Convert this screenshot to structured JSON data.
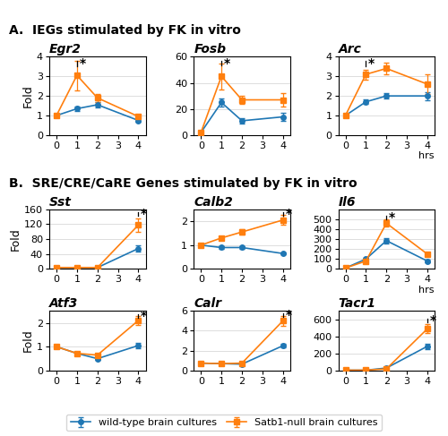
{
  "chart_data": [
    {
      "type": "line",
      "title": "Egr2",
      "subtitle": "A.  IEGs stimulated by FK in vitro",
      "ylabel": "Fold",
      "x": [
        0,
        1,
        2,
        4
      ],
      "xlim": [
        -0.35,
        4.35
      ],
      "xticks": [
        0,
        1,
        2,
        3,
        4
      ],
      "ylim": [
        0,
        4
      ],
      "yticks": [
        0,
        1,
        2,
        3,
        4
      ],
      "grid": "y",
      "legend": "lower center",
      "series": [
        {
          "name": "wild-type brain cultures",
          "marker": "o",
          "values": [
            1.0,
            1.35,
            1.55,
            0.75
          ],
          "errors": [
            0.06,
            0.12,
            0.12,
            0.08
          ]
        },
        {
          "name": "Satb1-null brain cultures",
          "marker": "s",
          "values": [
            1.0,
            3.05,
            1.9,
            0.95
          ],
          "errors": [
            0.08,
            0.75,
            0.2,
            0.12
          ]
        }
      ],
      "annotations": [
        {
          "text": "*",
          "x": 1,
          "y": 3.65
        }
      ]
    },
    {
      "type": "line",
      "title": "Fosb",
      "x": [
        0,
        1,
        2,
        4
      ],
      "xlim": [
        -0.35,
        4.35
      ],
      "xticks": [
        0,
        1,
        2,
        3,
        4
      ],
      "ylim": [
        0,
        60
      ],
      "yticks": [
        0,
        20,
        40,
        60
      ],
      "grid": "y",
      "series": [
        {
          "name": "wild-type brain cultures",
          "marker": "o",
          "values": [
            2.0,
            25.0,
            11.0,
            14.0
          ],
          "errors": [
            0.5,
            3.0,
            2.0,
            3.0
          ]
        },
        {
          "name": "Satb1-null brain cultures",
          "marker": "s",
          "values": [
            2.0,
            45.0,
            27.0,
            27.0
          ],
          "errors": [
            0.5,
            10.0,
            3.0,
            5.0
          ]
        }
      ],
      "annotations": [
        {
          "text": "*",
          "x": 1,
          "y": 55
        }
      ]
    },
    {
      "type": "line",
      "title": "Arc",
      "xlabel": "hrs",
      "x": [
        0,
        1,
        2,
        4
      ],
      "xlim": [
        -0.35,
        4.35
      ],
      "xticks": [
        0,
        1,
        2,
        3,
        4
      ],
      "ylim": [
        0,
        4
      ],
      "yticks": [
        0,
        1,
        2,
        3,
        4
      ],
      "grid": "y",
      "series": [
        {
          "name": "wild-type brain cultures",
          "marker": "o",
          "values": [
            1.0,
            1.7,
            2.0,
            2.0
          ],
          "errors": [
            0.08,
            0.12,
            0.15,
            0.2
          ]
        },
        {
          "name": "Satb1-null brain cultures",
          "marker": "s",
          "values": [
            1.0,
            3.1,
            3.4,
            2.6
          ],
          "errors": [
            0.1,
            0.25,
            0.3,
            0.5
          ]
        }
      ],
      "annotations": [
        {
          "text": "*",
          "x": 1,
          "y": 3.65
        }
      ]
    },
    {
      "type": "line",
      "title": "Sst",
      "subtitle": "B.  SRE/CRE/CaRE Genes stimulated by FK in vitro",
      "ylabel": "Fold",
      "x": [
        0,
        1,
        2,
        4
      ],
      "xlim": [
        -0.35,
        4.35
      ],
      "xticks": [
        0,
        1,
        2,
        3,
        4
      ],
      "ylim": [
        0,
        160
      ],
      "yticks": [
        0,
        40,
        80,
        120,
        160
      ],
      "grid": "y",
      "series": [
        {
          "name": "wild-type brain cultures",
          "marker": "o",
          "values": [
            4.0,
            4.0,
            4.0,
            55.0
          ],
          "errors": [
            1.0,
            1.0,
            1.0,
            8.0
          ]
        },
        {
          "name": "Satb1-null brain cultures",
          "marker": "s",
          "values": [
            4.0,
            4.0,
            4.0,
            118.0
          ],
          "errors": [
            1.0,
            1.0,
            1.0,
            18.0
          ]
        }
      ],
      "annotations": [
        {
          "text": "*",
          "x": 4,
          "y": 147
        }
      ]
    },
    {
      "type": "line",
      "title": "Calb2",
      "x": [
        0,
        1,
        2,
        4
      ],
      "xlim": [
        -0.35,
        4.35
      ],
      "xticks": [
        0,
        1,
        2,
        3,
        4
      ],
      "ylim": [
        0,
        2.5
      ],
      "yticks": [
        0,
        1,
        2
      ],
      "grid": "y",
      "series": [
        {
          "name": "wild-type brain cultures",
          "marker": "o",
          "values": [
            1.0,
            0.9,
            0.9,
            0.65
          ],
          "errors": [
            0.05,
            0.05,
            0.05,
            0.05
          ]
        },
        {
          "name": "Satb1-null brain cultures",
          "marker": "s",
          "values": [
            1.0,
            1.3,
            1.55,
            2.05
          ],
          "errors": [
            0.05,
            0.08,
            0.12,
            0.2
          ]
        }
      ],
      "annotations": [
        {
          "text": "*",
          "x": 4,
          "y": 2.3
        }
      ]
    },
    {
      "type": "line",
      "title": "Il6",
      "xlabel": "hrs",
      "x": [
        0,
        1,
        2,
        4
      ],
      "xlim": [
        -0.35,
        4.35
      ],
      "xticks": [
        0,
        1,
        2,
        3,
        4
      ],
      "ylim": [
        0,
        600
      ],
      "yticks": [
        0,
        100,
        200,
        300,
        400,
        500
      ],
      "grid": "y",
      "series": [
        {
          "name": "wild-type brain cultures",
          "marker": "o",
          "values": [
            10.0,
            100.0,
            285.0,
            80.0
          ],
          "errors": [
            3.0,
            15.0,
            25.0,
            12.0
          ]
        },
        {
          "name": "Satb1-null brain cultures",
          "marker": "s",
          "values": [
            10.0,
            80.0,
            460.0,
            150.0
          ],
          "errors": [
            3.0,
            12.0,
            35.0,
            20.0
          ]
        }
      ],
      "annotations": [
        {
          "text": "*",
          "x": 2,
          "y": 520
        }
      ]
    },
    {
      "type": "line",
      "title": "Atf3",
      "ylabel": "Fold",
      "x": [
        0,
        1,
        2,
        4
      ],
      "xlim": [
        -0.35,
        4.35
      ],
      "xticks": [
        0,
        1,
        2,
        3,
        4
      ],
      "ylim": [
        0,
        2.5
      ],
      "yticks": [
        0,
        1,
        2
      ],
      "grid": "y",
      "series": [
        {
          "name": "wild-type brain cultures",
          "marker": "o",
          "values": [
            1.0,
            0.72,
            0.5,
            1.05
          ],
          "errors": [
            0.05,
            0.05,
            0.05,
            0.12
          ]
        },
        {
          "name": "Satb1-null brain cultures",
          "marker": "s",
          "values": [
            1.0,
            0.72,
            0.65,
            2.1
          ],
          "errors": [
            0.05,
            0.05,
            0.05,
            0.18
          ]
        }
      ],
      "annotations": [
        {
          "text": "*",
          "x": 4,
          "y": 2.3
        }
      ]
    },
    {
      "type": "line",
      "title": "Calr",
      "x": [
        0,
        1,
        2,
        4
      ],
      "xlim": [
        -0.35,
        4.35
      ],
      "xticks": [
        0,
        1,
        2,
        3,
        4
      ],
      "ylim": [
        0,
        6
      ],
      "yticks": [
        0,
        2,
        4,
        6
      ],
      "grid": "y",
      "series": [
        {
          "name": "wild-type brain cultures",
          "marker": "o",
          "values": [
            0.75,
            0.7,
            0.65,
            2.5
          ],
          "errors": [
            0.05,
            0.05,
            0.05,
            0.2
          ]
        },
        {
          "name": "Satb1-null brain cultures",
          "marker": "s",
          "values": [
            0.75,
            0.7,
            0.75,
            5.0
          ],
          "errors": [
            0.05,
            0.05,
            0.05,
            0.5
          ]
        }
      ],
      "annotations": [
        {
          "text": "*",
          "x": 4,
          "y": 5.55
        }
      ]
    },
    {
      "type": "line",
      "title": "Tacr1",
      "x": [
        0,
        1,
        2,
        4
      ],
      "xlim": [
        -0.35,
        4.35
      ],
      "xticks": [
        0,
        1,
        2,
        3,
        4
      ],
      "ylim": [
        0,
        700
      ],
      "yticks": [
        0,
        200,
        400,
        600
      ],
      "grid": "y",
      "series": [
        {
          "name": "wild-type brain cultures",
          "marker": "o",
          "values": [
            5.0,
            5.0,
            30.0,
            285.0
          ],
          "errors": [
            2.0,
            2.0,
            8.0,
            30.0
          ]
        },
        {
          "name": "Satb1-null brain cultures",
          "marker": "s",
          "values": [
            5.0,
            5.0,
            20.0,
            490.0
          ],
          "errors": [
            2.0,
            2.0,
            5.0,
            55.0
          ]
        }
      ],
      "annotations": [
        {
          "text": "*",
          "x": 4,
          "y": 590
        }
      ]
    }
  ]
}
